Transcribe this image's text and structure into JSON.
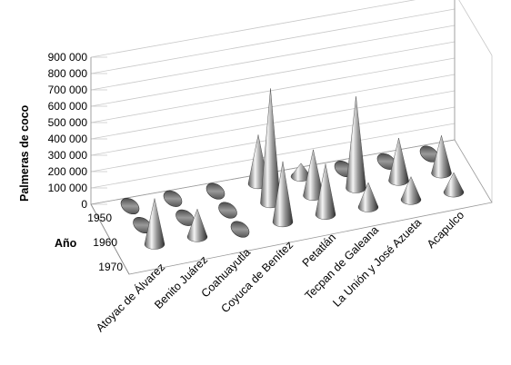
{
  "chart_data": {
    "type": "bar",
    "bar_shape": "cone",
    "view": "3d",
    "ylabel": "Palmeras  de coco",
    "zlabel": "Año",
    "yticks": [
      "0",
      "100 000",
      "200 000",
      "300 000",
      "400 000",
      "500 000",
      "600 000",
      "700 000",
      "800 000",
      "900 000"
    ],
    "ylim": [
      0,
      900000
    ],
    "categories": [
      "Atoyac de Álvarez",
      "Benito Juárez",
      "Coahuayutla",
      "Coyuca de Benítez",
      "Petatlán",
      "Tecpan de Galeana",
      "La Unión y José Azueta",
      "Acapulco"
    ],
    "series": [
      {
        "name": "1950",
        "values": [
          0,
          0,
          0,
          300000,
          80000,
          30000,
          20000,
          20000
        ]
      },
      {
        "name": "1960",
        "values": [
          20000,
          10000,
          0,
          700000,
          280000,
          560000,
          260000,
          230000
        ]
      },
      {
        "name": "1970",
        "values": [
          280000,
          170000,
          0,
          370000,
          310000,
          150000,
          140000,
          120000
        ]
      }
    ],
    "grid": true,
    "legend": "none"
  }
}
